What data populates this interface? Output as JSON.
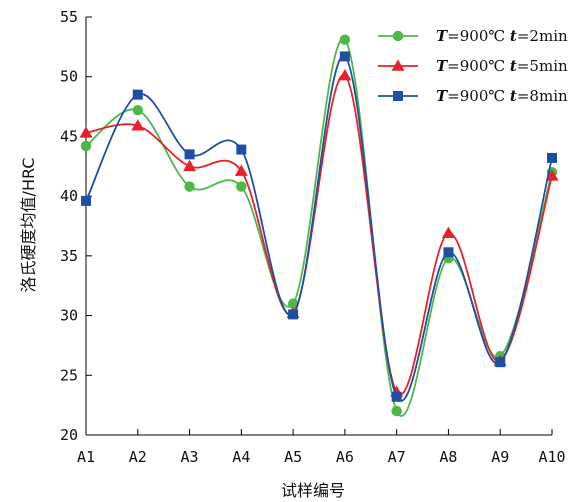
{
  "chart_data": {
    "type": "line",
    "title": "",
    "xlabel": "试样编号",
    "ylabel": "洛氏硬度均值/HRC",
    "categories": [
      "A1",
      "A2",
      "A3",
      "A4",
      "A5",
      "A6",
      "A7",
      "A8",
      "A9",
      "A10"
    ],
    "ylim": [
      20,
      55
    ],
    "yticks": [
      20,
      25,
      30,
      35,
      40,
      45,
      50,
      55
    ],
    "grid": false,
    "legend_position": "top-right",
    "line_style": "smooth",
    "series": [
      {
        "name": "T=900℃ t=2min",
        "legend": {
          "var1": "T",
          "val1": "=900℃ ",
          "var2": "t",
          "val2": "=2min"
        },
        "color": "#4db848",
        "marker": "circle",
        "values": [
          44.2,
          47.2,
          40.8,
          40.8,
          31.0,
          53.1,
          22.0,
          34.8,
          26.6,
          42.0
        ]
      },
      {
        "name": "T=900℃ t=5min",
        "legend": {
          "var1": "T",
          "val1": "=900℃ ",
          "var2": "t",
          "val2": "=5min"
        },
        "color": "#e8202a",
        "marker": "triangle",
        "values": [
          45.3,
          45.9,
          42.5,
          42.1,
          30.2,
          50.1,
          23.6,
          36.9,
          26.2,
          41.7
        ]
      },
      {
        "name": "T=900℃ t=8min",
        "legend": {
          "var1": "T",
          "val1": "=900℃ ",
          "var2": "t",
          "val2": "=8min"
        },
        "color": "#1f4fa3",
        "marker": "square",
        "values": [
          39.6,
          48.5,
          43.5,
          43.9,
          30.1,
          51.7,
          23.2,
          35.3,
          26.1,
          43.2
        ]
      }
    ]
  }
}
